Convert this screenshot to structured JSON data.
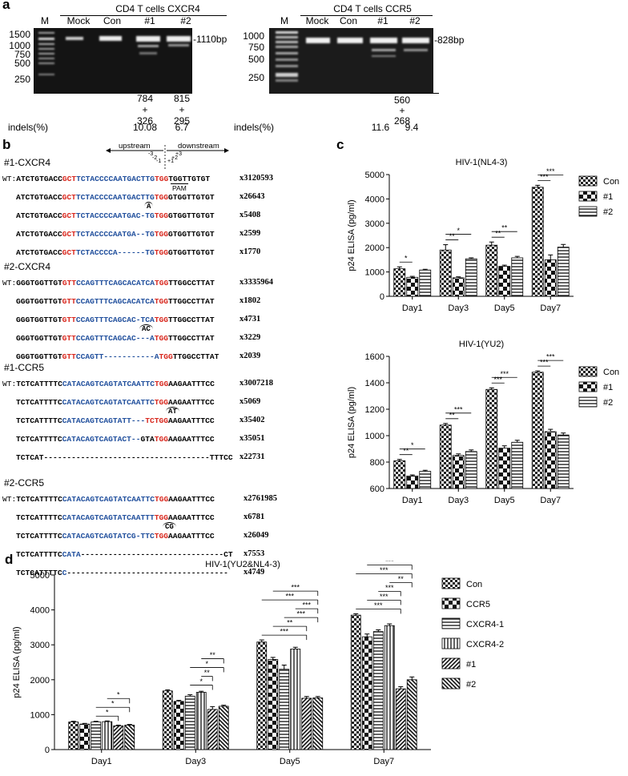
{
  "panel_a": {
    "letter": "a",
    "left_gel": {
      "title": "CD4 T cells CXCR4",
      "lanes": [
        "M",
        "Mock",
        "Con",
        "#1",
        "#2"
      ],
      "markers": [
        "1500",
        "1000",
        "750",
        "500",
        "250"
      ],
      "band_label": "-1110bp",
      "fragment_1": [
        "784",
        "+",
        "326"
      ],
      "fragment_2": [
        "815",
        "+",
        "295"
      ],
      "indels_label": "indels(%)",
      "indels": [
        "10.08",
        "6.7"
      ]
    },
    "right_gel": {
      "title": "CD4 T cells CCR5",
      "lanes": [
        "M",
        "Mock",
        "Con",
        "#1",
        "#2"
      ],
      "markers": [
        "1000",
        "750",
        "500",
        "250"
      ],
      "band_label": "-828bp",
      "fragments": [
        "560",
        "+",
        "268"
      ],
      "indels_label": "indels(%)",
      "indels": [
        "11.6",
        "9.4"
      ]
    }
  },
  "panel_b": {
    "letter": "b",
    "upstream": "upstream",
    "downstream": "downstream",
    "pos_labels": [
      "-3",
      "-2",
      "-1",
      "+1",
      "+2",
      "+3"
    ],
    "pam": "PAM",
    "wt_prefix": "WT:",
    "groups": [
      {
        "title": "#1-CXCR4",
        "rows": [
          {
            "wt": true,
            "segs": [
              [
                "ATCTGTGACC",
                "k"
              ],
              [
                "GCT",
                "r"
              ],
              [
                "TCTACCCCAATGACTTG",
                "b"
              ],
              [
                "TGG",
                "r"
              ],
              [
                "TGGTTGTGT",
                "k"
              ]
            ],
            "count": "x3120593"
          },
          {
            "segs": [
              [
                "ATCTGTGACC",
                "k"
              ],
              [
                "GCT",
                "r"
              ],
              [
                "TCTACCCCAATGACTTG",
                "b"
              ],
              [
                "TGG",
                "r"
              ],
              [
                "GTGGTTGTGT",
                "k"
              ]
            ],
            "count": "x26643",
            "ins": "A"
          },
          {
            "segs": [
              [
                "ATCTGTGACC",
                "k"
              ],
              [
                "GCT",
                "r"
              ],
              [
                "TCTACCCCAATGAC-TG",
                "b"
              ],
              [
                "TGG",
                "r"
              ],
              [
                "GTGGTTGTGT",
                "k"
              ]
            ],
            "count": "x5408"
          },
          {
            "segs": [
              [
                "ATCTGTGACC",
                "k"
              ],
              [
                "GCT",
                "r"
              ],
              [
                "TCTACCCCAATGA--TG",
                "b"
              ],
              [
                "TGG",
                "r"
              ],
              [
                "GTGGTTGTGT",
                "k"
              ]
            ],
            "count": "x2599"
          },
          {
            "segs": [
              [
                "ATCTGTGACC",
                "k"
              ],
              [
                "GCT",
                "r"
              ],
              [
                "TCTACCCCA------TG",
                "b"
              ],
              [
                "TGG",
                "r"
              ],
              [
                "GTGGTTGTGT",
                "k"
              ]
            ],
            "count": "x1770"
          }
        ]
      },
      {
        "title": "#2-CXCR4",
        "rows": [
          {
            "wt": true,
            "segs": [
              [
                "GGGTGGTTGT",
                "k"
              ],
              [
                "GTT",
                "r"
              ],
              [
                "CCAGTTTCAGCACATCA",
                "b"
              ],
              [
                "TGG",
                "r"
              ],
              [
                "TTGGCCTTAT",
                "k"
              ]
            ],
            "count": "x3335964"
          },
          {
            "segs": [
              [
                "GGGTGGTTGT",
                "k"
              ],
              [
                "GTT",
                "r"
              ],
              [
                "CCAGTTTCAGCACATCA",
                "b"
              ],
              [
                "TGG",
                "r"
              ],
              [
                "TTGGCCTTAT",
                "k"
              ]
            ],
            "count": "x1802"
          },
          {
            "segs": [
              [
                "GGGTGGTTGT",
                "k"
              ],
              [
                "GTT",
                "r"
              ],
              [
                "CCAGTTTCAGCAC-TCA",
                "b"
              ],
              [
                "TGG",
                "r"
              ],
              [
                "TTGGCCTTAT",
                "k"
              ]
            ],
            "count": "x4731",
            "ins": "AC"
          },
          {
            "segs": [
              [
                "GGGTGGTTGT",
                "k"
              ],
              [
                "GTT",
                "r"
              ],
              [
                "CCAGTTTCAGCAC---A",
                "b"
              ],
              [
                "TGG",
                "r"
              ],
              [
                "TTGGCCTTAT",
                "k"
              ]
            ],
            "count": "x3229"
          },
          {
            "segs": [
              [
                "GGGTGGTTGT",
                "k"
              ],
              [
                "GTT",
                "r"
              ],
              [
                "CCAGTT-----------A",
                "b"
              ],
              [
                "TGG",
                "r"
              ],
              [
                "TTGGCCTTAT",
                "k"
              ]
            ],
            "count": "x2039"
          }
        ]
      },
      {
        "title": "#1-CCR5",
        "rows": [
          {
            "wt": true,
            "segs": [
              [
                "TCTCATTTTC",
                "k"
              ],
              [
                "CATACAGTCAGTATCAATTC",
                "b"
              ],
              [
                "TGG",
                "r"
              ],
              [
                "AAGAATTTCC",
                "k"
              ]
            ],
            "count": "x3007218"
          },
          {
            "segs": [
              [
                "TCTCATTTTC",
                "k"
              ],
              [
                "CATACAGTCAGTATCAATTC",
                "b"
              ],
              [
                "TGG",
                "r"
              ],
              [
                "AAGAATTTCC",
                "k"
              ]
            ],
            "count": "x5069",
            "ins": "AT"
          },
          {
            "segs": [
              [
                "TCTCATTTTC",
                "k"
              ],
              [
                "CATACAGTCAGTATT---",
                "b"
              ],
              [
                "TCTGG",
                "r"
              ],
              [
                "AAGAATTTCC",
                "k"
              ]
            ],
            "count": "x35402"
          },
          {
            "segs": [
              [
                "TCTCATTTTC",
                "k"
              ],
              [
                "CATACAGTCAGTACT--",
                "b"
              ],
              [
                "GTA",
                "k"
              ],
              [
                "TGG",
                "r"
              ],
              [
                "AAGAATTTCC",
                "k"
              ]
            ],
            "count": "x35051"
          },
          {
            "segs": [
              [
                "TCTCAT------------------------------------TTTCC",
                "k"
              ]
            ],
            "count": "x22731"
          }
        ]
      },
      {
        "title": "#2-CCR5",
        "rows": [
          {
            "wt": true,
            "segs": [
              [
                "TCTCATTTTC",
                "k"
              ],
              [
                "CATACAGTCAGTATCAATTC",
                "b"
              ],
              [
                "TGG",
                "r"
              ],
              [
                "AAGAATTTCC",
                "k"
              ]
            ],
            "count": "x2761985"
          },
          {
            "segs": [
              [
                "TCTCATTTTC",
                "k"
              ],
              [
                "CATACAGTCAGTATCAATTT",
                "b"
              ],
              [
                "TGG",
                "r"
              ],
              [
                "AAGAATTTCC",
                "k"
              ]
            ],
            "count": "x6781",
            "ins": "CG"
          },
          {
            "segs": [
              [
                "TCTCATTTTC",
                "k"
              ],
              [
                "CATACAGTCAGTATCG-TTC",
                "b"
              ],
              [
                "TGG",
                "r"
              ],
              [
                "AAGAATTTCC",
                "k"
              ]
            ],
            "count": "x26049"
          },
          {
            "segs": [
              [
                "TCTCATTTTC",
                "k"
              ],
              [
                "CATA",
                "b"
              ],
              [
                "-------------------------------CT",
                "k"
              ]
            ],
            "count": "x7553"
          },
          {
            "segs": [
              [
                "TCTCATTTTC",
                "k"
              ],
              [
                "C",
                "b"
              ],
              [
                "-----------------------------------",
                "k"
              ]
            ],
            "count": "x4749"
          }
        ]
      }
    ]
  },
  "panel_c_letter": "c",
  "panel_d_letter": "d",
  "chart_data": [
    {
      "id": "c_top",
      "type": "bar",
      "title": "HIV-1(NL4-3)",
      "ylabel": "p24 ELISA (pg/ml)",
      "categories": [
        "Day1",
        "Day3",
        "Day5",
        "Day7"
      ],
      "ylim": [
        0,
        5000
      ],
      "yticks": [
        "0",
        "1000",
        "2000",
        "3000",
        "4000",
        "5000"
      ],
      "series": [
        {
          "name": "Con",
          "values": [
            1130,
            1900,
            2100,
            4480
          ],
          "errors": [
            80,
            220,
            130,
            80
          ]
        },
        {
          "name": "#1",
          "values": [
            780,
            760,
            1230,
            1500
          ],
          "errors": [
            40,
            40,
            50,
            200
          ]
        },
        {
          "name": "#2",
          "values": [
            1080,
            1540,
            1580,
            2020
          ],
          "errors": [
            30,
            40,
            60,
            110
          ]
        }
      ],
      "significance": [
        {
          "day": 0,
          "from": 0,
          "to": 1,
          "label": "*"
        },
        {
          "day": 1,
          "from": 0,
          "to": 1,
          "label": "**"
        },
        {
          "day": 1,
          "from": 0,
          "to": 2,
          "label": "*"
        },
        {
          "day": 2,
          "from": 0,
          "to": 1,
          "label": "**"
        },
        {
          "day": 2,
          "from": 0,
          "to": 2,
          "label": "**"
        },
        {
          "day": 3,
          "from": 0,
          "to": 1,
          "label": "***"
        },
        {
          "day": 3,
          "from": 0,
          "to": 2,
          "label": "***"
        }
      ]
    },
    {
      "id": "c_bottom",
      "type": "bar",
      "title": "HIV-1(YU2)",
      "ylabel": "p24 ELISA (pg/ml)",
      "categories": [
        "Day1",
        "Day3",
        "Day5",
        "Day7"
      ],
      "ylim": [
        600,
        1600
      ],
      "yticks": [
        "600",
        "800",
        "1000",
        "1200",
        "1400",
        "1600"
      ],
      "series": [
        {
          "name": "Con",
          "values": [
            810,
            1080,
            1350,
            1480
          ],
          "errors": [
            10,
            12,
            12,
            10
          ]
        },
        {
          "name": "#1",
          "values": [
            695,
            850,
            905,
            1030
          ],
          "errors": [
            8,
            12,
            18,
            18
          ]
        },
        {
          "name": "#2",
          "values": [
            730,
            880,
            950,
            1005
          ],
          "errors": [
            8,
            12,
            15,
            15
          ]
        }
      ],
      "significance": [
        {
          "day": 0,
          "from": 0,
          "to": 1,
          "label": "**"
        },
        {
          "day": 0,
          "from": 0,
          "to": 2,
          "label": "*"
        },
        {
          "day": 1,
          "from": 0,
          "to": 1,
          "label": "**"
        },
        {
          "day": 1,
          "from": 0,
          "to": 2,
          "label": "***"
        },
        {
          "day": 2,
          "from": 0,
          "to": 1,
          "label": "***"
        },
        {
          "day": 2,
          "from": 0,
          "to": 2,
          "label": "***"
        },
        {
          "day": 3,
          "from": 0,
          "to": 1,
          "label": "***"
        },
        {
          "day": 3,
          "from": 0,
          "to": 2,
          "label": "***"
        }
      ]
    },
    {
      "id": "d",
      "type": "bar",
      "title": "HIV-1(YU2&NL4-3)",
      "ylabel": "p24 ELISA (pg/ml)",
      "categories": [
        "Day1",
        "Day3",
        "Day5",
        "Day7"
      ],
      "ylim": [
        0,
        5000
      ],
      "yticks": [
        "0",
        "1000",
        "2000",
        "3000",
        "4000",
        "5000"
      ],
      "series": [
        {
          "name": "Con",
          "values": [
            790,
            1680,
            3080,
            3850
          ],
          "errors": [
            20,
            30,
            60,
            40
          ]
        },
        {
          "name": "CCR5",
          "values": [
            730,
            1380,
            2580,
            3230
          ],
          "errors": [
            20,
            30,
            60,
            80
          ]
        },
        {
          "name": "CXCR4-1",
          "values": [
            790,
            1530,
            2300,
            3380
          ],
          "errors": [
            20,
            40,
            120,
            50
          ]
        },
        {
          "name": "CXCR4-2",
          "values": [
            800,
            1640,
            2880,
            3550
          ],
          "errors": [
            20,
            30,
            50,
            50
          ]
        },
        {
          "name": "#1",
          "values": [
            680,
            1150,
            1470,
            1740
          ],
          "errors": [
            20,
            80,
            50,
            60
          ]
        },
        {
          "name": "#2",
          "values": [
            700,
            1240,
            1480,
            2000
          ],
          "errors": [
            20,
            30,
            40,
            80
          ]
        }
      ],
      "significance": [
        {
          "day": 0,
          "from": 2,
          "to": 4,
          "label": "*"
        },
        {
          "day": 0,
          "from": 2,
          "to": 5,
          "label": "*"
        },
        {
          "day": 0,
          "from": 3,
          "to": 5,
          "label": "*"
        },
        {
          "day": 1,
          "from": 2,
          "to": 4,
          "label": "*"
        },
        {
          "day": 1,
          "from": 3,
          "to": 4,
          "label": "**"
        },
        {
          "day": 1,
          "from": 2,
          "to": 5,
          "label": "*"
        },
        {
          "day": 1,
          "from": 3,
          "to": 5,
          "label": "**"
        },
        {
          "day": 2,
          "from": 0,
          "to": 4,
          "label": "***"
        },
        {
          "day": 2,
          "from": 1,
          "to": 4,
          "label": "**"
        },
        {
          "day": 2,
          "from": 2,
          "to": 5,
          "label": "***"
        },
        {
          "day": 2,
          "from": 3,
          "to": 5,
          "label": "***"
        },
        {
          "day": 2,
          "from": 0,
          "to": 5,
          "label": "***"
        },
        {
          "day": 2,
          "from": 1,
          "to": 5,
          "label": "***"
        },
        {
          "day": 3,
          "from": 0,
          "to": 4,
          "label": "***"
        },
        {
          "day": 3,
          "from": 1,
          "to": 4,
          "label": "***"
        },
        {
          "day": 3,
          "from": 2,
          "to": 4,
          "label": "***"
        },
        {
          "day": 3,
          "from": 3,
          "to": 5,
          "label": "**"
        },
        {
          "day": 3,
          "from": 0,
          "to": 5,
          "label": "***"
        },
        {
          "day": 3,
          "from": 1,
          "to": 5,
          "label": "***"
        }
      ]
    }
  ]
}
